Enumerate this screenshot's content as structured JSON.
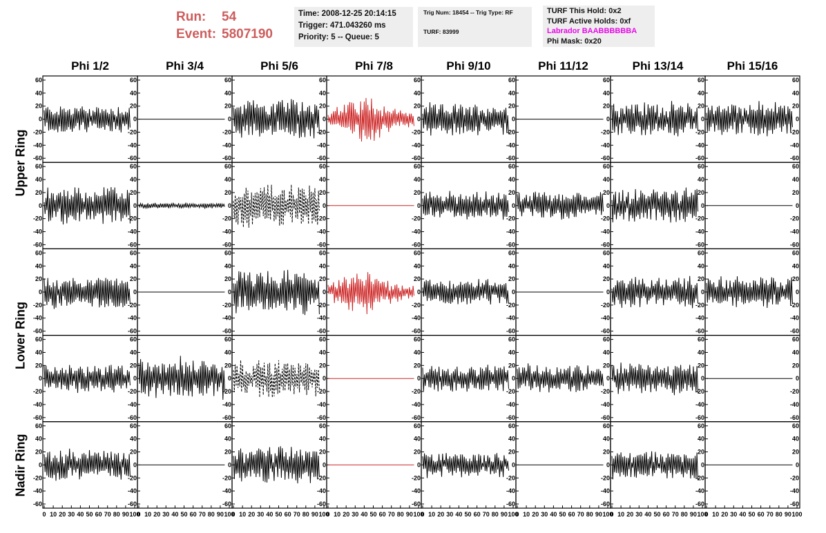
{
  "header": {
    "run_label": "Run:",
    "run_value": "54",
    "event_label": "Event:",
    "event_value": "5807190"
  },
  "info_time": {
    "time": "Time: 2008-12-25 20:14:15",
    "trigger": "Trigger: 471.043260 ms",
    "priority": "Priority: 5 -- Queue: 5"
  },
  "info_trig": {
    "trig": "Trig Num: 18454 -- Trig Type: RF",
    "turf": "TURF: 83999"
  },
  "info_turf": {
    "this_hold": "TURF This Hold: 0x2",
    "active_holds": "TURF Active Holds: 0xf",
    "labrador": "Labrador BAABBBBBBA",
    "phi_mask": "Phi Mask: 0x20"
  },
  "colors": {
    "trace": "#000000",
    "highlight": "#cc2222",
    "run_text": "#cd5c5c",
    "labrador_text": "#e60ae6",
    "box_bg": "#eeeeee"
  },
  "chart_data": {
    "type": "line",
    "columns": [
      "Phi 1/2",
      "Phi 3/4",
      "Phi 5/6",
      "Phi 7/8",
      "Phi 9/10",
      "Phi 11/12",
      "Phi 13/14",
      "Phi 15/16"
    ],
    "row_labels": [
      "Upper Ring",
      "Lower Ring",
      "Nadir Ring"
    ],
    "xlim": [
      0,
      100
    ],
    "ylim": [
      -60,
      60
    ],
    "x_ticks": [
      0,
      10,
      20,
      30,
      40,
      50,
      60,
      70,
      80,
      90,
      100
    ],
    "y_ticks": [
      -60,
      -40,
      -20,
      0,
      20,
      40,
      60
    ],
    "x_tick_text": "0 10 20 30 40 50 60 70 80 90 100",
    "panels": [
      [
        {
          "kind": "noise",
          "amp": 20
        },
        {
          "kind": "flat"
        },
        {
          "kind": "noise",
          "amp": 28
        },
        {
          "kind": "pulse",
          "amp": 34,
          "red": true
        },
        {
          "kind": "noise",
          "amp": 22
        },
        {
          "kind": "flat"
        },
        {
          "kind": "noise",
          "amp": 24
        },
        {
          "kind": "noise",
          "amp": 24
        }
      ],
      [
        {
          "kind": "noise",
          "amp": 26
        },
        {
          "kind": "quiet",
          "amp": 4
        },
        {
          "kind": "dashed",
          "amp": 30
        },
        {
          "kind": "flat",
          "red": true
        },
        {
          "kind": "noise",
          "amp": 20
        },
        {
          "kind": "noise",
          "amp": 20
        },
        {
          "kind": "noise",
          "amp": 24
        },
        {
          "kind": "flat"
        }
      ],
      [
        {
          "kind": "noise",
          "amp": 22
        },
        {
          "kind": "flat"
        },
        {
          "kind": "noise",
          "amp": 30
        },
        {
          "kind": "pulse",
          "amp": 30,
          "red": true
        },
        {
          "kind": "noise",
          "amp": 18
        },
        {
          "kind": "flat"
        },
        {
          "kind": "noise",
          "amp": 22
        },
        {
          "kind": "noise",
          "amp": 22
        }
      ],
      [
        {
          "kind": "noise",
          "amp": 20
        },
        {
          "kind": "noise",
          "amp": 30
        },
        {
          "kind": "dashed",
          "amp": 26
        },
        {
          "kind": "flat",
          "red": true
        },
        {
          "kind": "noise",
          "amp": 18
        },
        {
          "kind": "noise",
          "amp": 20
        },
        {
          "kind": "noise",
          "amp": 22
        },
        {
          "kind": "flat"
        }
      ],
      [
        {
          "kind": "noise",
          "amp": 22
        },
        {
          "kind": "flat"
        },
        {
          "kind": "noise",
          "amp": 26
        },
        {
          "kind": "flat",
          "red": true
        },
        {
          "kind": "noise",
          "amp": 18
        },
        {
          "kind": "flat"
        },
        {
          "kind": "noise",
          "amp": 20
        },
        {
          "kind": "flat"
        }
      ]
    ]
  }
}
